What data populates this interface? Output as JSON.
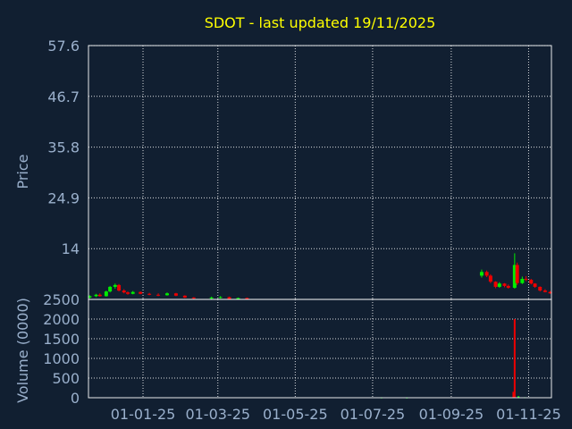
{
  "chart_data": {
    "type": "candlestick",
    "title": "SDOT - last updated 19/11/2025",
    "colors": {
      "background": "#111f31",
      "plot_border": "#ffffff",
      "grid": "#ffffff",
      "title": "#ffff00",
      "axis_text": "#9ab0cc",
      "up": "#00ee00",
      "down": "#ee0000"
    },
    "grid": true,
    "price_panel": {
      "ylabel": "Price",
      "ylim": [
        3.1,
        57.6
      ],
      "y_ticks": [
        {
          "value": 57.6,
          "label": "57.6"
        },
        {
          "value": 46.7,
          "label": "46.7"
        },
        {
          "value": 35.8,
          "label": "35.8"
        },
        {
          "value": 24.9,
          "label": "24.9"
        },
        {
          "value": 14,
          "label": "14"
        }
      ]
    },
    "volume_panel": {
      "ylabel": "Volume (0000)",
      "ylim": [
        0,
        2500
      ],
      "y_ticks": [
        {
          "value": 2500,
          "label": "2500"
        },
        {
          "value": 2000,
          "label": "2000"
        },
        {
          "value": 1500,
          "label": "1500"
        },
        {
          "value": 1000,
          "label": "1000"
        },
        {
          "value": 500,
          "label": "500"
        },
        {
          "value": 0,
          "label": "0"
        }
      ]
    },
    "x_axis": {
      "start": "2024-11-19",
      "end": "2025-11-19",
      "ticks": [
        {
          "date": "2025-01-01",
          "label": "01-01-25"
        },
        {
          "date": "2025-03-01",
          "label": "01-03-25"
        },
        {
          "date": "2025-05-01",
          "label": "01-05-25"
        },
        {
          "date": "2025-07-01",
          "label": "01-07-25"
        },
        {
          "date": "2025-09-01",
          "label": "01-09-25"
        },
        {
          "date": "2025-11-01",
          "label": "01-11-25"
        }
      ]
    },
    "candles": [
      {
        "date": "2024-11-20",
        "open": 3.5,
        "high": 4.0,
        "low": 3.3,
        "close": 3.8
      },
      {
        "date": "2024-11-25",
        "open": 3.8,
        "high": 4.3,
        "low": 3.6,
        "close": 4.1
      },
      {
        "date": "2024-11-28",
        "open": 4.1,
        "high": 4.4,
        "low": 3.7,
        "close": 3.8
      },
      {
        "date": "2024-12-03",
        "open": 3.8,
        "high": 5.0,
        "low": 3.7,
        "close": 4.8
      },
      {
        "date": "2024-12-06",
        "open": 4.8,
        "high": 6.0,
        "low": 4.6,
        "close": 5.8
      },
      {
        "date": "2024-12-10",
        "open": 5.8,
        "high": 6.5,
        "low": 5.4,
        "close": 6.2
      },
      {
        "date": "2024-12-13",
        "open": 6.2,
        "high": 6.4,
        "low": 4.8,
        "close": 5.0
      },
      {
        "date": "2024-12-17",
        "open": 5.0,
        "high": 5.3,
        "low": 4.4,
        "close": 4.6
      },
      {
        "date": "2024-12-20",
        "open": 4.6,
        "high": 4.8,
        "low": 4.1,
        "close": 4.3
      },
      {
        "date": "2024-12-24",
        "open": 4.3,
        "high": 4.9,
        "low": 4.2,
        "close": 4.7
      },
      {
        "date": "2024-12-30",
        "open": 4.7,
        "high": 4.8,
        "low": 4.2,
        "close": 4.3
      },
      {
        "date": "2025-01-06",
        "open": 4.3,
        "high": 4.5,
        "low": 4.0,
        "close": 4.1
      },
      {
        "date": "2025-01-13",
        "open": 4.1,
        "high": 4.4,
        "low": 3.8,
        "close": 4.0
      },
      {
        "date": "2025-01-20",
        "open": 4.0,
        "high": 4.6,
        "low": 3.9,
        "close": 4.4
      },
      {
        "date": "2025-01-27",
        "open": 4.4,
        "high": 4.5,
        "low": 3.8,
        "close": 3.9
      },
      {
        "date": "2025-02-03",
        "open": 3.9,
        "high": 4.0,
        "low": 3.4,
        "close": 3.5
      },
      {
        "date": "2025-02-10",
        "open": 3.5,
        "high": 3.6,
        "low": 3.2,
        "close": 3.3
      },
      {
        "date": "2025-02-24",
        "open": 3.3,
        "high": 3.7,
        "low": 3.2,
        "close": 3.5
      },
      {
        "date": "2025-03-03",
        "open": 3.5,
        "high": 3.8,
        "low": 3.3,
        "close": 3.6
      },
      {
        "date": "2025-03-10",
        "open": 3.6,
        "high": 3.7,
        "low": 3.1,
        "close": 3.2
      },
      {
        "date": "2025-03-17",
        "open": 3.2,
        "high": 3.5,
        "low": 3.1,
        "close": 3.4
      },
      {
        "date": "2025-03-24",
        "open": 3.4,
        "high": 3.5,
        "low": 3.1,
        "close": 3.2
      },
      {
        "date": "2025-09-25",
        "open": 8.2,
        "high": 9.5,
        "low": 7.8,
        "close": 9.0
      },
      {
        "date": "2025-09-29",
        "open": 9.0,
        "high": 9.3,
        "low": 7.9,
        "close": 8.2
      },
      {
        "date": "2025-10-02",
        "open": 8.2,
        "high": 8.5,
        "low": 6.6,
        "close": 6.9
      },
      {
        "date": "2025-10-06",
        "open": 6.9,
        "high": 7.0,
        "low": 5.5,
        "close": 5.8
      },
      {
        "date": "2025-10-09",
        "open": 5.8,
        "high": 6.8,
        "low": 5.6,
        "close": 6.5
      },
      {
        "date": "2025-10-13",
        "open": 6.5,
        "high": 6.6,
        "low": 5.7,
        "close": 6.0
      },
      {
        "date": "2025-10-16",
        "open": 6.0,
        "high": 6.3,
        "low": 5.4,
        "close": 5.6
      },
      {
        "date": "2025-10-21",
        "open": 5.6,
        "high": 13.0,
        "low": 5.4,
        "close": 10.5
      },
      {
        "date": "2025-10-23",
        "open": 10.5,
        "high": 11.0,
        "low": 6.2,
        "close": 6.6
      },
      {
        "date": "2025-10-27",
        "open": 6.6,
        "high": 8.0,
        "low": 6.4,
        "close": 7.5
      },
      {
        "date": "2025-10-30",
        "open": 7.5,
        "high": 8.1,
        "low": 7.0,
        "close": 7.3
      },
      {
        "date": "2025-11-03",
        "open": 7.3,
        "high": 7.5,
        "low": 6.3,
        "close": 6.5
      },
      {
        "date": "2025-11-06",
        "open": 6.5,
        "high": 6.6,
        "low": 5.6,
        "close": 5.8
      },
      {
        "date": "2025-11-10",
        "open": 5.8,
        "high": 5.9,
        "low": 4.8,
        "close": 5.0
      },
      {
        "date": "2025-11-14",
        "open": 5.0,
        "high": 5.3,
        "low": 4.6,
        "close": 4.7
      },
      {
        "date": "2025-11-18",
        "open": 4.7,
        "high": 4.9,
        "low": 4.3,
        "close": 4.4
      }
    ],
    "volume_bars": [
      {
        "date": "2025-07-08",
        "value": 8
      },
      {
        "date": "2025-07-28",
        "value": 6
      },
      {
        "date": "2025-10-20",
        "value": 150
      },
      {
        "date": "2025-10-21",
        "value": 2000
      },
      {
        "date": "2025-10-24",
        "value": 40
      },
      {
        "date": "2025-10-29",
        "value": 12
      }
    ]
  }
}
